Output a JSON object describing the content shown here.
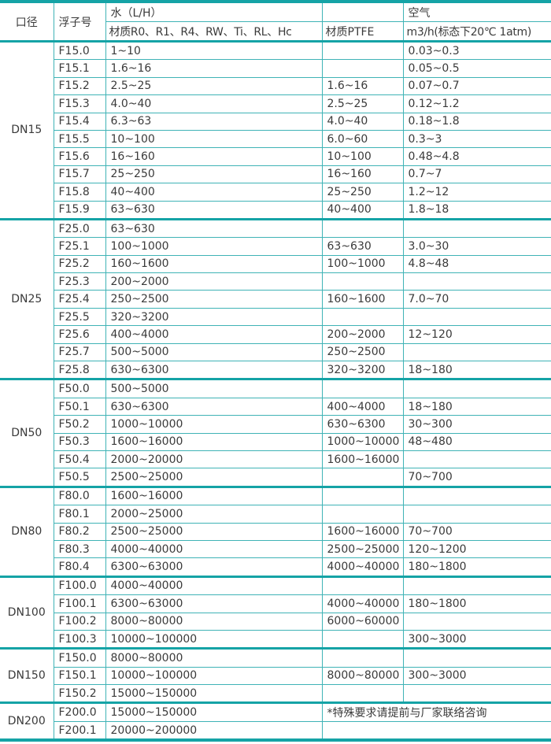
{
  "header": {
    "size": "口径",
    "float": "浮子号",
    "water": "水（L/H）",
    "air": "空气",
    "water_material": "材质R0、R1、R4、RW、Ti、RL、Hc",
    "ptfe_material": "材质PTFE",
    "air_unit": "m3/h(标态下20℃ 1atm)"
  },
  "note": "*特殊要求请提前与厂家联络咨询",
  "colors": {
    "border": "#15a3a6",
    "text": "#3a3a3a"
  },
  "groups": [
    {
      "size": "DN15",
      "rows": [
        [
          "F15.0",
          "1~10",
          "",
          "0.03~0.3"
        ],
        [
          "F15.1",
          "1.6~16",
          "",
          "0.05~0.5"
        ],
        [
          "F15.2",
          "2.5~25",
          "1.6~16",
          "0.07~0.7"
        ],
        [
          "F15.3",
          "4.0~40",
          "2.5~25",
          "0.12~1.2"
        ],
        [
          "F15.4",
          "6.3~63",
          "4.0~40",
          "0.18~1.8"
        ],
        [
          "F15.5",
          "10~100",
          "6.0~60",
          "0.3~3"
        ],
        [
          "F15.6",
          "16~160",
          "10~100",
          "0.48~4.8"
        ],
        [
          "F15.7",
          "25~250",
          "16~160",
          "0.7~7"
        ],
        [
          "F15.8",
          "40~400",
          "25~250",
          "1.2~12"
        ],
        [
          "F15.9",
          "63~630",
          "40~400",
          "1.8~18"
        ]
      ]
    },
    {
      "size": "DN25",
      "rows": [
        [
          "F25.0",
          "63~630",
          "",
          ""
        ],
        [
          "F25.1",
          "100~1000",
          "63~630",
          "3.0~30"
        ],
        [
          "F25.2",
          "160~1600",
          "100~1000",
          "4.8~48"
        ],
        [
          "F25.3",
          "200~2000",
          "",
          ""
        ],
        [
          "F25.4",
          "250~2500",
          "160~1600",
          "7.0~70"
        ],
        [
          "F25.5",
          "320~3200",
          "",
          ""
        ],
        [
          "F25.6",
          "400~4000",
          "200~2000",
          "12~120"
        ],
        [
          "F25.7",
          "500~5000",
          "250~2500",
          ""
        ],
        [
          "F25.8",
          "630~6300",
          "320~3200",
          "18~180"
        ]
      ]
    },
    {
      "size": "DN50",
      "rows": [
        [
          "F50.0",
          "500~5000",
          "",
          ""
        ],
        [
          "F50.1",
          "630~6300",
          "400~4000",
          "18~180"
        ],
        [
          "F50.2",
          "1000~10000",
          "630~6300",
          "30~300"
        ],
        [
          "F50.3",
          "1600~16000",
          "1000~10000",
          "48~480"
        ],
        [
          "F50.4",
          "2000~20000",
          "1600~16000",
          ""
        ],
        [
          "F50.5",
          "2500~25000",
          "",
          "70~700"
        ]
      ]
    },
    {
      "size": "DN80",
      "rows": [
        [
          "F80.0",
          "1600~16000",
          "",
          ""
        ],
        [
          "F80.1",
          "2000~25000",
          "",
          ""
        ],
        [
          "F80.2",
          "2500~25000",
          "1600~16000",
          "70~700"
        ],
        [
          "F80.3",
          "4000~40000",
          "2500~25000",
          "120~1200"
        ],
        [
          "F80.4",
          "6300~63000",
          "4000~40000",
          "180~1800"
        ]
      ]
    },
    {
      "size": "DN100",
      "rows": [
        [
          "F100.0",
          "4000~40000",
          "",
          ""
        ],
        [
          "F100.1",
          "6300~63000",
          "4000~40000",
          "180~1800"
        ],
        [
          "F100.2",
          "8000~80000",
          "6000~60000",
          ""
        ],
        [
          "F100.3",
          "10000~100000",
          "",
          "300~3000"
        ]
      ]
    },
    {
      "size": "DN150",
      "rows": [
        [
          "F150.0",
          "8000~80000",
          "",
          ""
        ],
        [
          "F150.1",
          "10000~100000",
          "8000~80000",
          "300~3000"
        ],
        [
          "F150.2",
          "15000~150000",
          "",
          ""
        ]
      ]
    },
    {
      "size": "DN200",
      "rows": [
        [
          "F200.0",
          "15000~150000"
        ],
        [
          "F200.1",
          "20000~200000"
        ]
      ],
      "note_rows": true
    }
  ]
}
